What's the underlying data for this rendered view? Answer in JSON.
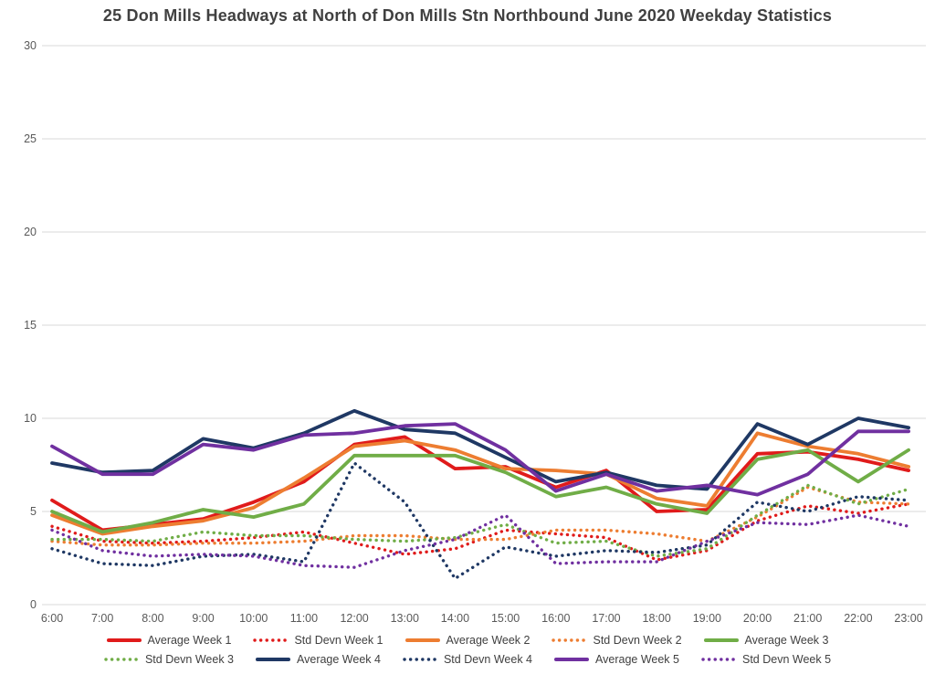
{
  "style": {
    "grid_color": "#d9d9d9",
    "axis_text_color": "#595959",
    "title_color": "#404040",
    "background": "#ffffff"
  },
  "chart_data": {
    "type": "line",
    "title": "25 Don Mills Headways at North of Don Mills Stn Northbound June 2020 Weekday Statistics",
    "xlabel": "",
    "ylabel": "",
    "ylim": [
      0,
      30
    ],
    "y_ticks": [
      0,
      5,
      10,
      15,
      20,
      25,
      30
    ],
    "grid": true,
    "legend_position": "bottom",
    "x_labels": [
      "6:00",
      "7:00",
      "8:00",
      "9:00",
      "10:00",
      "11:00",
      "12:00",
      "13:00",
      "14:00",
      "15:00",
      "16:00",
      "17:00",
      "18:00",
      "19:00",
      "20:00",
      "21:00",
      "22:00",
      "23:00"
    ],
    "series": [
      {
        "name": "Average Week 1",
        "color": "#e01b1b",
        "style": "solid",
        "values": [
          5.6,
          4.0,
          4.3,
          4.6,
          5.5,
          6.6,
          8.6,
          9.0,
          7.3,
          7.4,
          6.3,
          7.2,
          5.0,
          5.1,
          8.1,
          8.2,
          7.8,
          7.2
        ]
      },
      {
        "name": "Std Devn Week 1",
        "color": "#e01b1b",
        "style": "dotted",
        "values": [
          4.2,
          3.4,
          3.3,
          3.4,
          3.6,
          3.9,
          3.3,
          2.7,
          3.0,
          4.0,
          3.8,
          3.6,
          2.4,
          2.9,
          4.5,
          5.3,
          4.9,
          5.4
        ]
      },
      {
        "name": "Average Week 2",
        "color": "#ed7d31",
        "style": "solid",
        "values": [
          4.8,
          3.8,
          4.2,
          4.5,
          5.2,
          6.8,
          8.5,
          8.8,
          8.3,
          7.3,
          7.2,
          7.0,
          5.7,
          5.3,
          9.2,
          8.5,
          8.1,
          7.4
        ]
      },
      {
        "name": "Std Devn Week 2",
        "color": "#ed7d31",
        "style": "dotted",
        "values": [
          3.4,
          3.2,
          3.2,
          3.3,
          3.3,
          3.4,
          3.7,
          3.7,
          3.5,
          3.5,
          4.0,
          4.0,
          3.8,
          3.4,
          4.7,
          6.3,
          5.5,
          5.4
        ]
      },
      {
        "name": "Average Week 3",
        "color": "#70ad47",
        "style": "solid",
        "values": [
          5.0,
          3.9,
          4.4,
          5.1,
          4.7,
          5.4,
          8.0,
          8.0,
          8.0,
          7.1,
          5.8,
          6.3,
          5.4,
          4.9,
          7.8,
          8.3,
          6.6,
          8.3
        ]
      },
      {
        "name": "Std Devn Week 3",
        "color": "#70ad47",
        "style": "dotted",
        "values": [
          3.5,
          3.5,
          3.4,
          3.9,
          3.7,
          3.7,
          3.5,
          3.4,
          3.6,
          4.3,
          3.3,
          3.4,
          2.6,
          3.0,
          4.8,
          6.4,
          5.4,
          6.2
        ]
      },
      {
        "name": "Average Week 4",
        "color": "#1f3864",
        "style": "solid",
        "values": [
          7.6,
          7.1,
          7.2,
          8.9,
          8.4,
          9.2,
          10.4,
          9.4,
          9.2,
          7.9,
          6.6,
          7.1,
          6.4,
          6.2,
          9.7,
          8.6,
          10.0,
          9.5
        ]
      },
      {
        "name": "Std Devn Week 4",
        "color": "#1f3864",
        "style": "dotted",
        "values": [
          3.0,
          2.2,
          2.1,
          2.6,
          2.7,
          2.3,
          7.6,
          5.5,
          1.4,
          3.1,
          2.6,
          2.9,
          2.8,
          3.2,
          5.5,
          5.0,
          5.8,
          5.6
        ]
      },
      {
        "name": "Average Week 5",
        "color": "#7030a0",
        "style": "solid",
        "values": [
          8.5,
          7.0,
          7.0,
          8.6,
          8.3,
          9.1,
          9.2,
          9.6,
          9.7,
          8.3,
          6.1,
          7.0,
          6.1,
          6.4,
          5.9,
          7.0,
          9.3,
          9.3
        ]
      },
      {
        "name": "Std Devn Week 5",
        "color": "#7030a0",
        "style": "dotted",
        "values": [
          4.0,
          2.9,
          2.6,
          2.7,
          2.6,
          2.1,
          2.0,
          2.9,
          3.5,
          4.8,
          2.2,
          2.3,
          2.3,
          3.4,
          4.4,
          4.3,
          4.8,
          4.2
        ]
      }
    ]
  }
}
